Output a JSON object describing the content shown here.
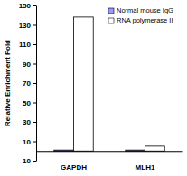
{
  "chart_data": {
    "type": "bar",
    "y_label": "Relative Enrichment Fold",
    "categories": [
      "GAPDH",
      "MLH1"
    ],
    "series": [
      {
        "name": "Normal mouse IgG",
        "color": "#9999ff",
        "values": [
          1,
          1
        ]
      },
      {
        "name": "RNA polymerase II",
        "color": "#ffffff",
        "values": [
          138,
          5
        ]
      }
    ],
    "ylim": [
      -10,
      150
    ],
    "yticks": [
      -10,
      10,
      30,
      50,
      70,
      90,
      110,
      130,
      150
    ],
    "grid": false,
    "legend": "top-right"
  }
}
